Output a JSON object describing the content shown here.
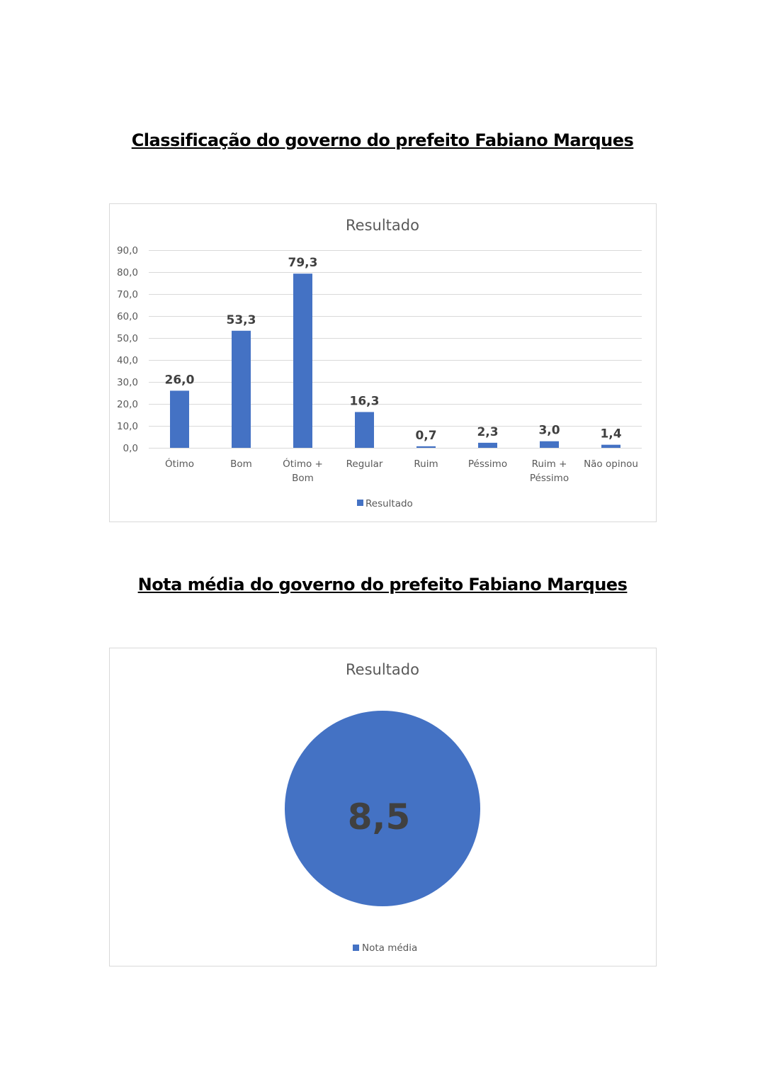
{
  "headings": {
    "bar": "Classificação do governo do prefeito Fabiano Marques",
    "pie": "Nota média do governo do prefeito Fabiano Marques"
  },
  "colors": {
    "series": "#4472C4",
    "grid": "#D9D9D9",
    "text": "#595959",
    "label": "#404040"
  },
  "chart_data": [
    {
      "type": "bar",
      "title": "Resultado",
      "categories": [
        "Ótimo",
        "Bom",
        "Ótimo + Bom",
        "Regular",
        "Ruim",
        "Péssimo",
        "Ruim + Péssimo",
        "Não opinou"
      ],
      "series": [
        {
          "name": "Resultado",
          "values": [
            26.0,
            53.3,
            79.3,
            16.3,
            0.7,
            2.3,
            3.0,
            1.4
          ]
        }
      ],
      "data_labels": [
        "26,0",
        "53,3",
        "79,3",
        "16,3",
        "0,7",
        "2,3",
        "3,0",
        "1,4"
      ],
      "ylim": [
        0,
        90
      ],
      "yticks": [
        "0,0",
        "10,0",
        "20,0",
        "30,0",
        "40,0",
        "50,0",
        "60,0",
        "70,0",
        "80,0",
        "90,0"
      ],
      "grid": true,
      "legend": "bottom"
    },
    {
      "type": "pie",
      "title": "Resultado",
      "categories": [
        "Nota média"
      ],
      "values": [
        8.5
      ],
      "data_labels": [
        "8,5"
      ],
      "legend": "bottom"
    }
  ]
}
